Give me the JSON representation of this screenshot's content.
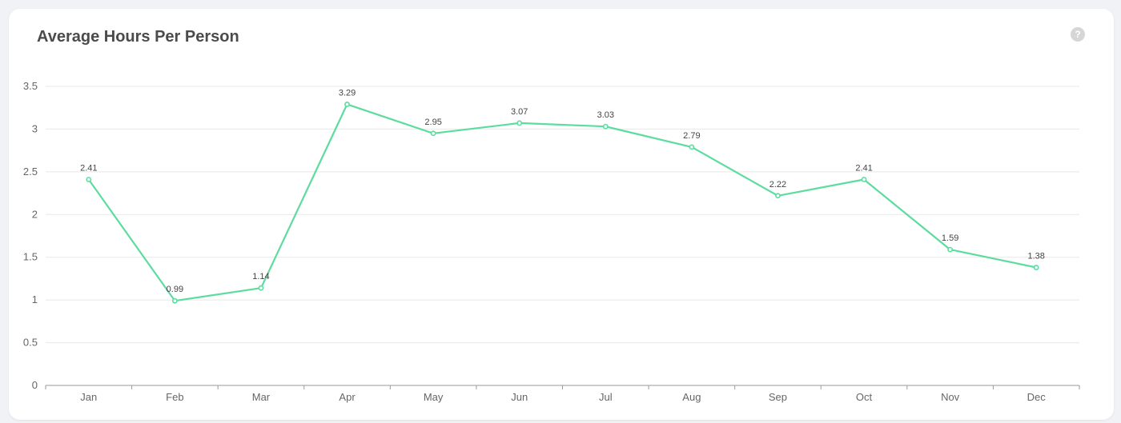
{
  "card": {
    "title": "Average Hours Per Person",
    "help_icon": "question-circle-icon",
    "help_glyph": "?"
  },
  "chart_data": {
    "type": "line",
    "title": "Average Hours Per Person",
    "categories": [
      "Jan",
      "Feb",
      "Mar",
      "Apr",
      "May",
      "Jun",
      "Jul",
      "Aug",
      "Sep",
      "Oct",
      "Nov",
      "Dec"
    ],
    "series": [
      {
        "values": [
          2.41,
          0.99,
          1.14,
          3.29,
          2.95,
          3.07,
          3.03,
          2.79,
          2.22,
          2.41,
          1.59,
          1.38
        ]
      }
    ],
    "data_labels": [
      "2.41",
      "0.99",
      "1.14",
      "3.29",
      "2.95",
      "3.07",
      "3.03",
      "2.79",
      "2.22",
      "2.41",
      "1.59",
      "1.38"
    ],
    "y_ticks": [
      "0",
      "0.5",
      "1",
      "1.5",
      "2",
      "2.5",
      "3",
      "3.5"
    ],
    "ylim": [
      0,
      3.5
    ],
    "grid": true,
    "legend": false,
    "line_color": "#5ddc9f"
  }
}
